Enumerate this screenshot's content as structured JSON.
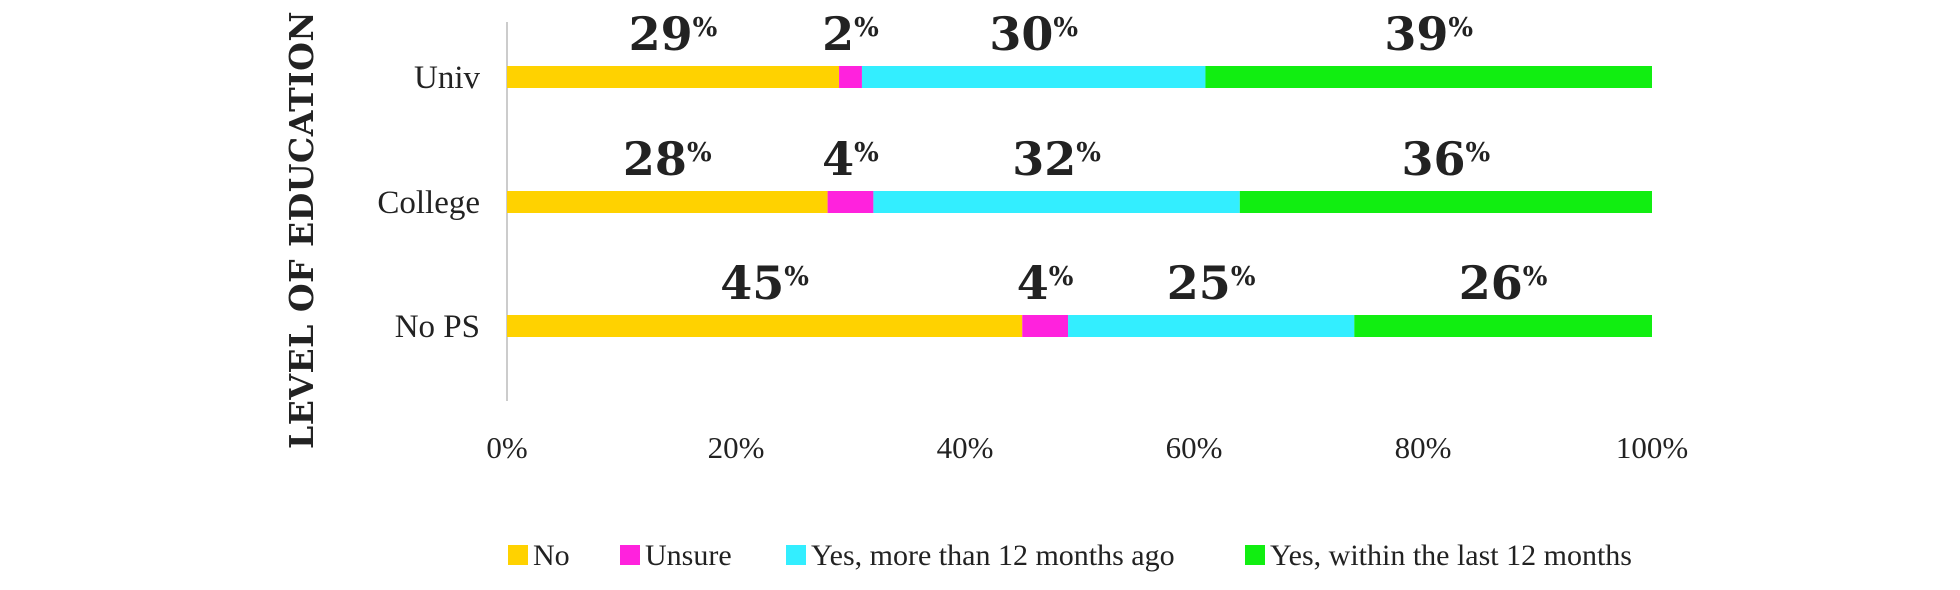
{
  "chart_data": {
    "type": "bar",
    "orientation": "horizontal",
    "stacked": true,
    "ylabel": "LEVEL OF EDUCATION",
    "categories": [
      "Univ",
      "College",
      "No PS"
    ],
    "xlim": [
      0,
      100
    ],
    "xticks": [
      "0%",
      "20%",
      "40%",
      "60%",
      "80%",
      "100%"
    ],
    "grid": false,
    "legend_position": "bottom",
    "series": [
      {
        "name": "No",
        "color": "#FFD200",
        "values": [
          29,
          28,
          45
        ],
        "labels": [
          "29",
          "28",
          "45"
        ]
      },
      {
        "name": "Unsure",
        "color": "#FF22DD",
        "values": [
          2,
          4,
          4
        ],
        "labels": [
          "2",
          "4",
          "4"
        ]
      },
      {
        "name": "Yes, more than 12 months ago",
        "color": "#33EEFF",
        "values": [
          30,
          32,
          25
        ],
        "labels": [
          "30",
          "32",
          "25"
        ]
      },
      {
        "name": "Yes, within the last 12 months",
        "color": "#11EE11",
        "values": [
          39,
          36,
          26
        ],
        "labels": [
          "39",
          "36",
          "26"
        ]
      }
    ],
    "percent_suffix": "%"
  }
}
